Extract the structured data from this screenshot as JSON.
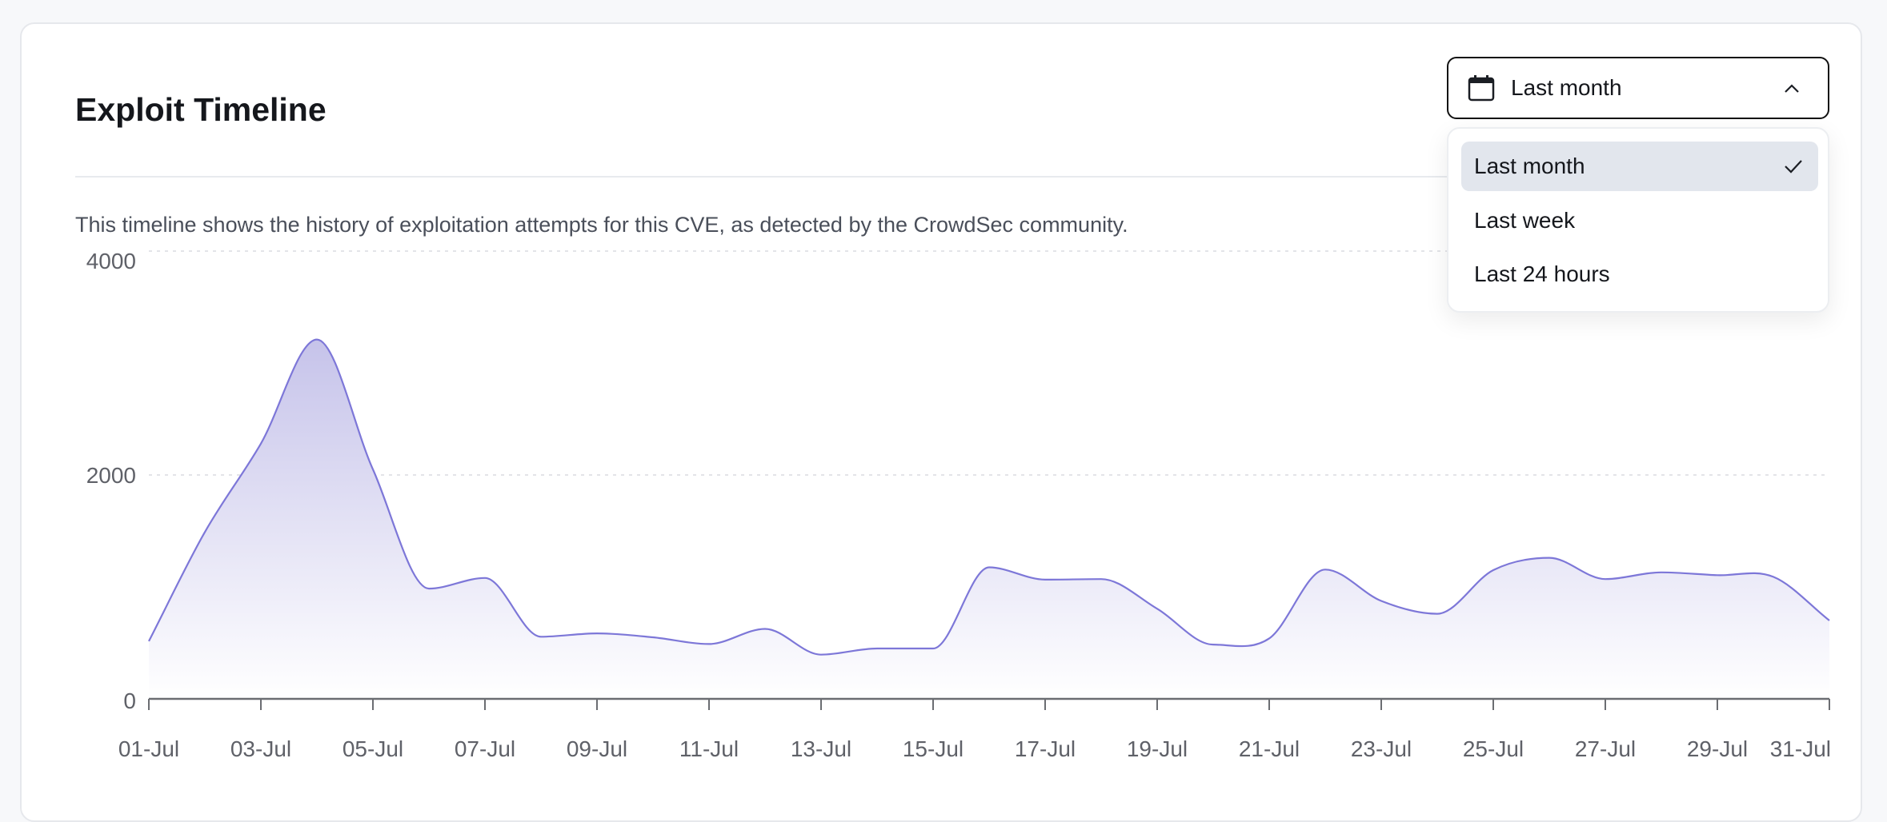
{
  "card": {
    "title": "Exploit Timeline",
    "description": "This timeline shows the history of exploitation attempts for this CVE, as detected by the CrowdSec community."
  },
  "range_select": {
    "selected": "Last month",
    "icon": "calendar-icon",
    "expanded": true,
    "options": [
      {
        "label": "Last month",
        "selected": true
      },
      {
        "label": "Last week",
        "selected": false
      },
      {
        "label": "Last 24 hours",
        "selected": false
      }
    ]
  },
  "colors": {
    "line": "#7d77d8",
    "fill_top": "#c6c3ea",
    "grid": "#e3e4e8",
    "axis": "#6b6d72"
  },
  "chart_data": {
    "type": "area",
    "title": "",
    "xlabel": "",
    "ylabel": "",
    "ylim": [
      0,
      4000
    ],
    "yticks": [
      "0",
      "2000",
      "4000"
    ],
    "grid": "horizontal dashed",
    "xtick_labels": [
      "01-Jul",
      "03-Jul",
      "05-Jul",
      "07-Jul",
      "09-Jul",
      "11-Jul",
      "13-Jul",
      "15-Jul",
      "17-Jul",
      "19-Jul",
      "21-Jul",
      "23-Jul",
      "25-Jul",
      "27-Jul",
      "29-Jul",
      "31-Jul"
    ],
    "categories": [
      "01-Jul",
      "02-Jul",
      "03-Jul",
      "04-Jul",
      "05-Jul",
      "06-Jul",
      "07-Jul",
      "08-Jul",
      "09-Jul",
      "10-Jul",
      "11-Jul",
      "12-Jul",
      "13-Jul",
      "14-Jul",
      "15-Jul",
      "16-Jul",
      "17-Jul",
      "18-Jul",
      "19-Jul",
      "20-Jul",
      "21-Jul",
      "22-Jul",
      "23-Jul",
      "24-Jul",
      "25-Jul",
      "26-Jul",
      "27-Jul",
      "28-Jul",
      "29-Jul",
      "30-Jul",
      "31-Jul"
    ],
    "values": [
      515,
      1490,
      2280,
      3210,
      2050,
      985,
      1080,
      555,
      585,
      550,
      490,
      625,
      395,
      450,
      450,
      1175,
      1065,
      1070,
      805,
      485,
      540,
      1155,
      875,
      760,
      1150,
      1260,
      1070,
      1130,
      1105,
      1090,
      700
    ]
  }
}
